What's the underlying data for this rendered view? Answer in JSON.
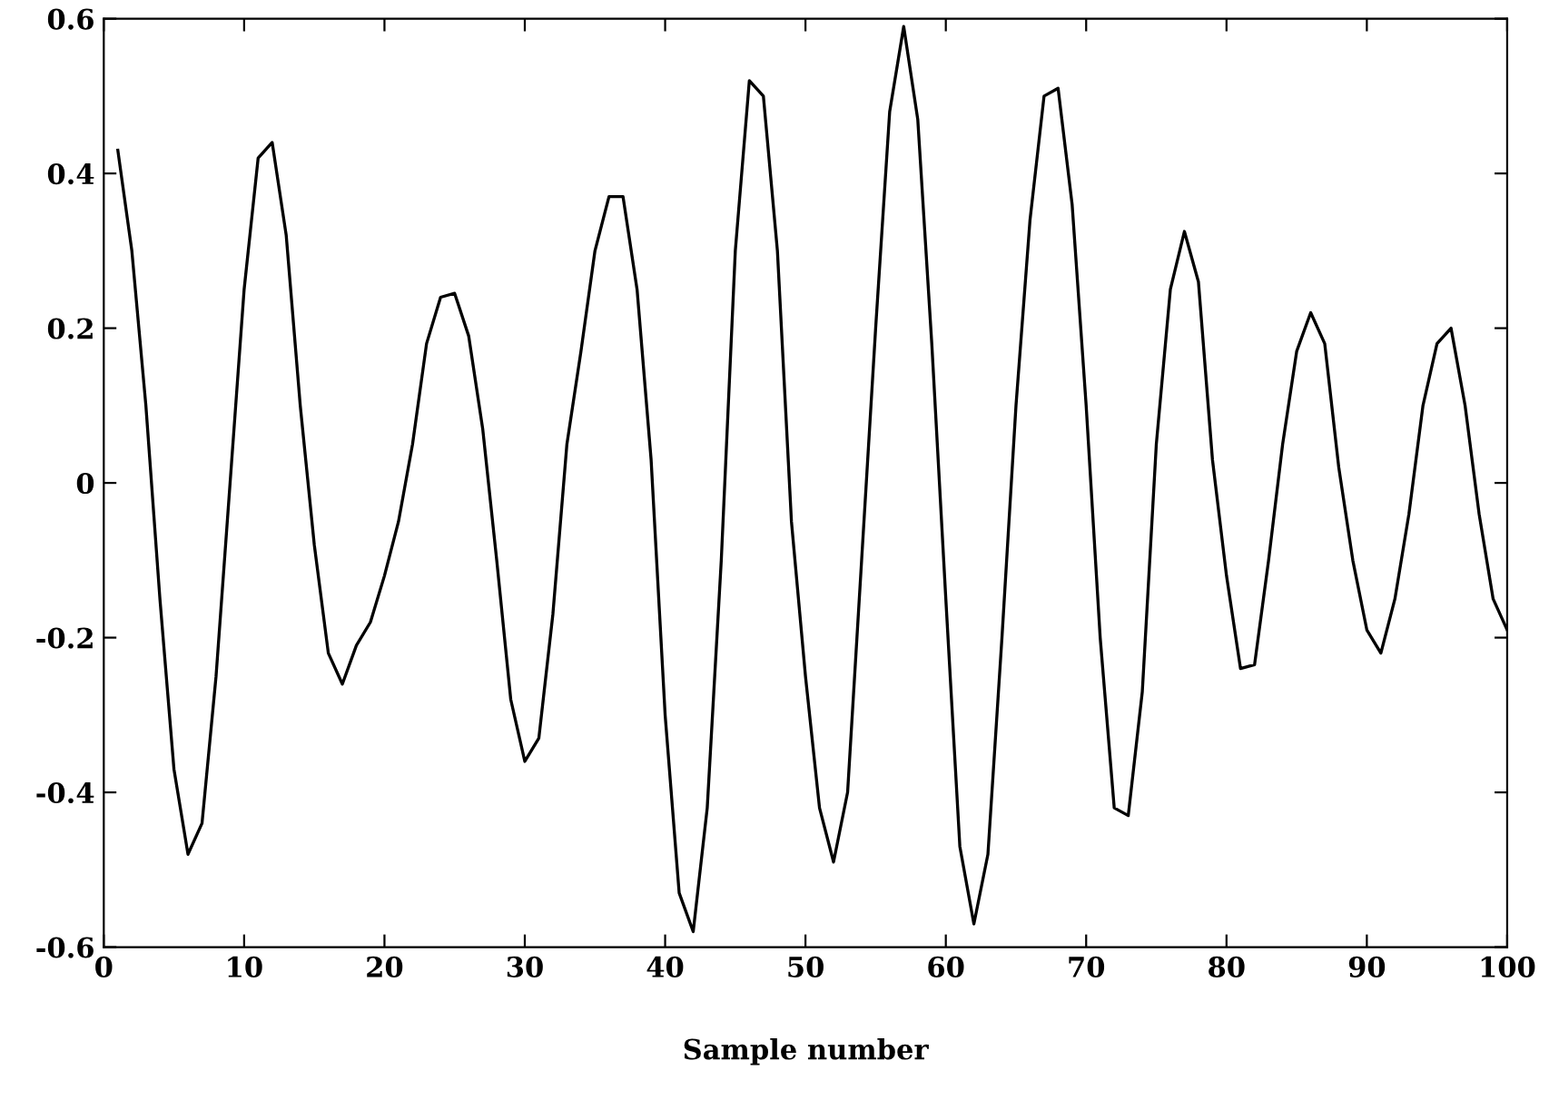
{
  "chart_data": {
    "type": "line",
    "xlabel": "Sample number",
    "x": [
      1,
      2,
      3,
      4,
      5,
      6,
      7,
      8,
      9,
      10,
      11,
      12,
      13,
      14,
      15,
      16,
      17,
      18,
      19,
      20,
      21,
      22,
      23,
      24,
      25,
      26,
      27,
      28,
      29,
      30,
      31,
      32,
      33,
      34,
      35,
      36,
      37,
      38,
      39,
      40,
      41,
      42,
      43,
      44,
      45,
      46,
      47,
      48,
      49,
      50,
      51,
      52,
      53,
      54,
      55,
      56,
      57,
      58,
      59,
      60,
      61,
      62,
      63,
      64,
      65,
      66,
      67,
      68,
      69,
      70,
      71,
      72,
      73,
      74,
      75,
      76,
      77,
      78,
      79,
      80,
      81,
      82,
      83,
      84,
      85,
      86,
      87,
      88,
      89,
      90,
      91,
      92,
      93,
      94,
      95,
      96,
      97,
      98,
      99,
      100
    ],
    "series": [
      {
        "color": "#000000",
        "values": [
          0.43,
          0.3,
          0.1,
          -0.15,
          -0.37,
          -0.48,
          -0.44,
          -0.25,
          0.0,
          0.25,
          0.42,
          0.44,
          0.32,
          0.1,
          -0.08,
          -0.22,
          -0.26,
          -0.21,
          -0.18,
          -0.12,
          -0.05,
          0.05,
          0.18,
          0.24,
          0.245,
          0.19,
          0.07,
          -0.1,
          -0.28,
          -0.36,
          -0.33,
          -0.17,
          0.05,
          0.17,
          0.3,
          0.37,
          0.37,
          0.25,
          0.03,
          -0.3,
          -0.53,
          -0.58,
          -0.42,
          -0.1,
          0.3,
          0.52,
          0.5,
          0.3,
          -0.05,
          -0.25,
          -0.42,
          -0.49,
          -0.4,
          -0.1,
          0.2,
          0.48,
          0.59,
          0.47,
          0.18,
          -0.15,
          -0.47,
          -0.57,
          -0.48,
          -0.2,
          0.1,
          0.34,
          0.5,
          0.51,
          0.36,
          0.1,
          -0.2,
          -0.42,
          -0.43,
          -0.27,
          0.05,
          0.25,
          0.325,
          0.26,
          0.03,
          -0.12,
          -0.24,
          -0.235,
          -0.1,
          0.05,
          0.17,
          0.22,
          0.18,
          0.02,
          -0.1,
          -0.19,
          -0.22,
          -0.15,
          -0.04,
          0.1,
          0.18,
          0.2,
          0.1,
          -0.04,
          -0.15,
          -0.19
        ]
      }
    ],
    "xlim": [
      0,
      100
    ],
    "xticks": [
      0,
      10,
      20,
      30,
      40,
      50,
      60,
      70,
      80,
      90,
      100
    ],
    "ylim": [
      -0.6,
      0.6
    ],
    "yticks": [
      -0.6,
      -0.4,
      -0.2,
      0,
      0.2,
      0.4,
      0.6
    ],
    "grid": false,
    "legend": false,
    "marker": "none",
    "line_style": "solid"
  }
}
